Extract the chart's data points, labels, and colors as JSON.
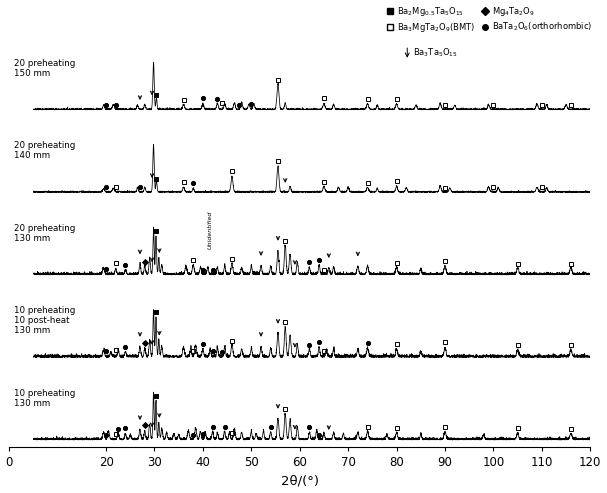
{
  "xlabel": "2θ/(°)",
  "xlim": [
    0,
    120
  ],
  "xticks": [
    0,
    20,
    30,
    40,
    50,
    60,
    70,
    80,
    90,
    100,
    110,
    120
  ],
  "figsize": [
    6.07,
    4.93
  ],
  "dpi": 100,
  "num_traces": 5,
  "trace_labels": [
    [
      "10 preheating",
      "130 mm"
    ],
    [
      "10 preheating",
      "10 post-heat",
      "130 mm"
    ],
    [
      "20 preheating",
      "130 mm"
    ],
    [
      "20 preheating",
      "140 mm"
    ],
    [
      "20 preheating",
      "150 mm"
    ]
  ],
  "background_color": "white",
  "seed": 42,
  "noise_level": 0.012,
  "offsets": [
    0.0,
    0.95,
    1.9,
    2.85,
    3.8
  ],
  "trace_scale": 0.55
}
